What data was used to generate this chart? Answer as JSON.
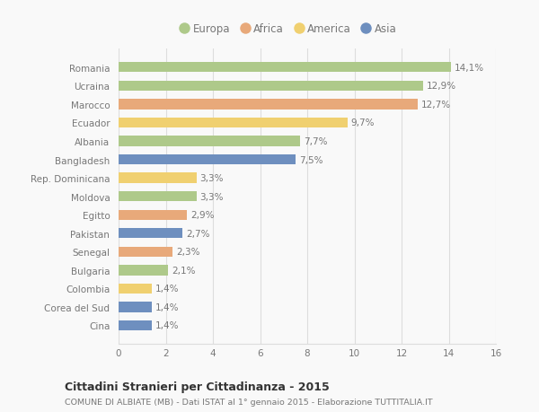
{
  "countries": [
    "Romania",
    "Ucraina",
    "Marocco",
    "Ecuador",
    "Albania",
    "Bangladesh",
    "Rep. Dominicana",
    "Moldova",
    "Egitto",
    "Pakistan",
    "Senegal",
    "Bulgaria",
    "Colombia",
    "Corea del Sud",
    "Cina"
  ],
  "values": [
    14.1,
    12.9,
    12.7,
    9.7,
    7.7,
    7.5,
    3.3,
    3.3,
    2.9,
    2.7,
    2.3,
    2.1,
    1.4,
    1.4,
    1.4
  ],
  "labels": [
    "14,1%",
    "12,9%",
    "12,7%",
    "9,7%",
    "7,7%",
    "7,5%",
    "3,3%",
    "3,3%",
    "2,9%",
    "2,7%",
    "2,3%",
    "2,1%",
    "1,4%",
    "1,4%",
    "1,4%"
  ],
  "continents": [
    "Europa",
    "Europa",
    "Africa",
    "America",
    "Europa",
    "Asia",
    "America",
    "Europa",
    "Africa",
    "Asia",
    "Africa",
    "Europa",
    "America",
    "Asia",
    "Asia"
  ],
  "colors": {
    "Europa": "#aec98a",
    "Africa": "#e8a97a",
    "America": "#f0d070",
    "Asia": "#6e8fbf"
  },
  "legend_order": [
    "Europa",
    "Africa",
    "America",
    "Asia"
  ],
  "xlim": [
    0,
    16
  ],
  "xticks": [
    0,
    2,
    4,
    6,
    8,
    10,
    12,
    14,
    16
  ],
  "title": "Cittadini Stranieri per Cittadinanza - 2015",
  "subtitle": "COMUNE DI ALBIATE (MB) - Dati ISTAT al 1° gennaio 2015 - Elaborazione TUTTITALIA.IT",
  "bg_color": "#f9f9f9",
  "grid_color": "#dddddd",
  "text_color": "#777777",
  "title_color": "#333333",
  "bar_height": 0.55
}
